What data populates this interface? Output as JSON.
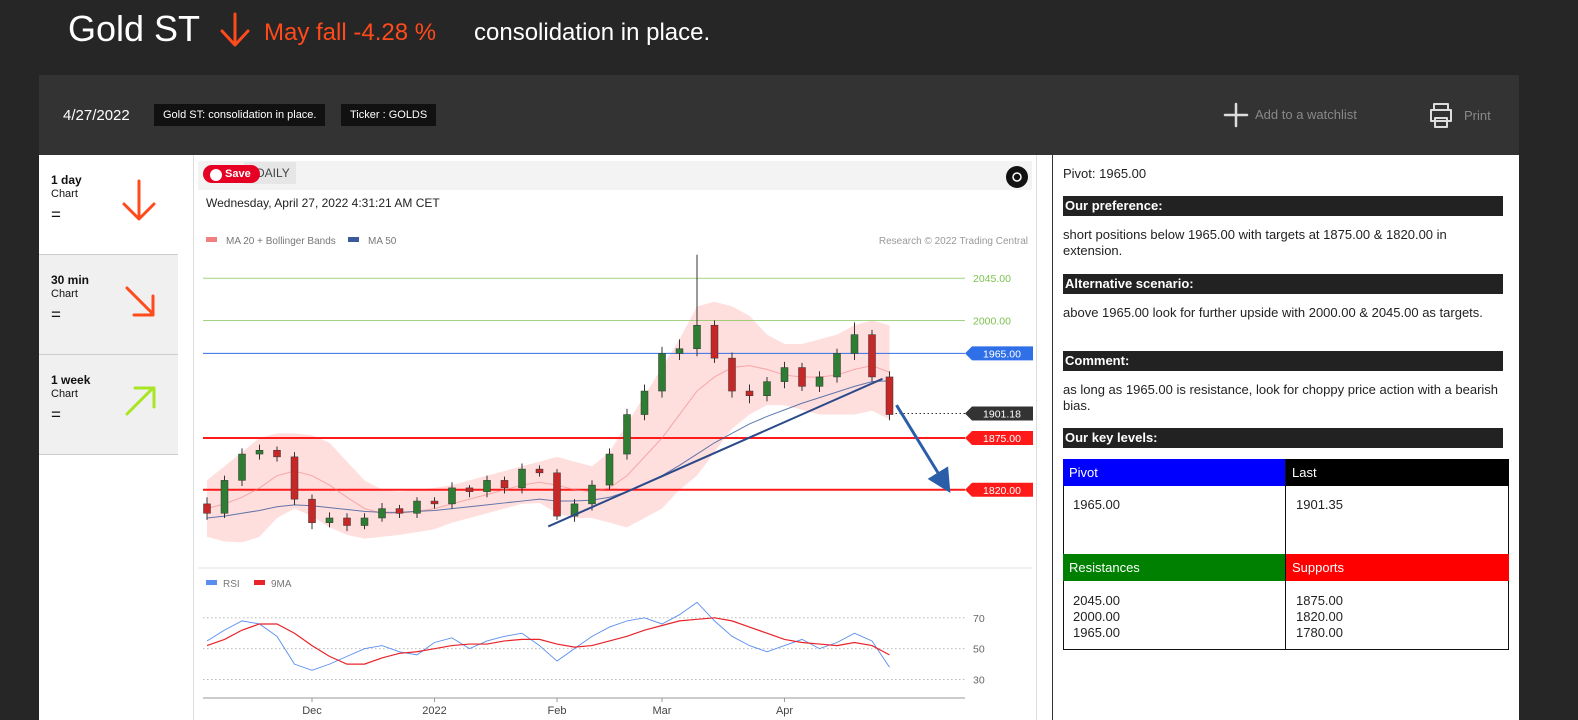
{
  "header": {
    "title": "Gold ST",
    "direction": "May fall",
    "change": "-4.28 %",
    "headline": "consolidation in place."
  },
  "toolbar": {
    "date": "4/27/2022",
    "badges": [
      "Gold ST: consolidation in place.",
      "Ticker : GOLDS"
    ],
    "watchlist": "Add to a watchlist",
    "print": "Print"
  },
  "timeframes": [
    {
      "period": "1 day",
      "label": "Chart",
      "signal": "="
    },
    {
      "period": "30 min",
      "label": "Chart",
      "signal": "="
    },
    {
      "period": "1 week",
      "label": "Chart",
      "signal": "="
    }
  ],
  "chart_header": {
    "save": "Save",
    "interval": "DAILY",
    "timestamp": "Wednesday, April 27, 2022 4:31:21 AM CET",
    "credit": "Research © 2022 Trading Central"
  },
  "chart_data": {
    "type": "candlestick",
    "categories": [
      null,
      null,
      null,
      null,
      null,
      null,
      "Dec",
      null,
      null,
      null,
      null,
      null,
      null,
      "2022",
      null,
      null,
      null,
      null,
      null,
      null,
      "Feb",
      null,
      null,
      null,
      null,
      null,
      "Mar",
      null,
      null,
      null,
      null,
      null,
      null,
      "Apr",
      null,
      null,
      null,
      null,
      null,
      null
    ],
    "open": [
      1805,
      1795,
      1830,
      1858,
      1862,
      1855,
      1810,
      1785,
      1790,
      1782,
      1790,
      1800,
      1795,
      1808,
      1805,
      1822,
      1818,
      1830,
      1822,
      1842,
      1838,
      1792,
      1805,
      1825,
      1858,
      1900,
      1925,
      1965,
      1970,
      1995,
      1960,
      1925,
      1920,
      1935,
      1950,
      1930,
      1940,
      1965,
      1985,
      1940
    ],
    "high": [
      1812,
      1835,
      1864,
      1868,
      1866,
      1860,
      1815,
      1796,
      1795,
      1795,
      1806,
      1804,
      1812,
      1812,
      1828,
      1825,
      1835,
      1834,
      1848,
      1846,
      1842,
      1810,
      1830,
      1864,
      1906,
      1932,
      1972,
      1980,
      2070,
      2000,
      1966,
      1932,
      1940,
      1956,
      1955,
      1946,
      1970,
      1998,
      1990,
      1946
    ],
    "low": [
      1788,
      1790,
      1824,
      1852,
      1850,
      1804,
      1778,
      1780,
      1776,
      1778,
      1786,
      1790,
      1790,
      1800,
      1800,
      1812,
      1812,
      1816,
      1816,
      1834,
      1788,
      1786,
      1798,
      1820,
      1852,
      1894,
      1918,
      1958,
      1962,
      1955,
      1918,
      1912,
      1914,
      1928,
      1925,
      1924,
      1934,
      1958,
      1935,
      1894
    ],
    "close": [
      1795,
      1830,
      1858,
      1862,
      1855,
      1810,
      1785,
      1790,
      1782,
      1790,
      1800,
      1795,
      1808,
      1805,
      1822,
      1818,
      1830,
      1822,
      1842,
      1838,
      1792,
      1805,
      1825,
      1858,
      1900,
      1925,
      1965,
      1970,
      1995,
      1960,
      1925,
      1920,
      1935,
      1950,
      1930,
      1940,
      1965,
      1985,
      1940,
      1900
    ],
    "up_color": "#2e7d32",
    "down_color": "#c62828",
    "ylim": [
      1740,
      2075
    ],
    "series": [
      {
        "name": "MA 20 + Bollinger Bands",
        "color": "#f08080",
        "values": [
          1800,
          1805,
          1812,
          1822,
          1835,
          1840,
          1835,
          1825,
          1812,
          1800,
          1795,
          1795,
          1797,
          1800,
          1805,
          1810,
          1815,
          1820,
          1825,
          1828,
          1825,
          1820,
          1818,
          1822,
          1835,
          1855,
          1875,
          1900,
          1925,
          1940,
          1950,
          1952,
          1948,
          1942,
          1940,
          1940,
          1942,
          1948,
          1952,
          1945
        ],
        "upper": [
          1830,
          1845,
          1860,
          1875,
          1880,
          1880,
          1878,
          1870,
          1850,
          1830,
          1820,
          1818,
          1820,
          1822,
          1825,
          1830,
          1835,
          1840,
          1845,
          1850,
          1855,
          1850,
          1845,
          1860,
          1890,
          1920,
          1950,
          1980,
          2015,
          2020,
          2015,
          2005,
          1985,
          1975,
          1975,
          1980,
          1985,
          1995,
          2000,
          1995
        ],
        "lower": [
          1770,
          1765,
          1764,
          1770,
          1790,
          1800,
          1792,
          1780,
          1772,
          1768,
          1770,
          1772,
          1775,
          1778,
          1785,
          1790,
          1795,
          1800,
          1805,
          1806,
          1795,
          1790,
          1790,
          1785,
          1780,
          1790,
          1800,
          1820,
          1835,
          1860,
          1885,
          1900,
          1910,
          1910,
          1905,
          1900,
          1900,
          1900,
          1904,
          1895
        ],
        "band_color": "#ffd6d6"
      },
      {
        "name": "MA 50",
        "color": "#3a5a9a",
        "values": [
          1790,
          1792,
          1795,
          1798,
          1802,
          1804,
          1803,
          1801,
          1799,
          1797,
          1796,
          1796,
          1797,
          1798,
          1800,
          1802,
          1804,
          1806,
          1808,
          1810,
          1808,
          1808,
          1809,
          1812,
          1818,
          1826,
          1835,
          1846,
          1858,
          1870,
          1880,
          1890,
          1898,
          1905,
          1912,
          1918,
          1924,
          1930,
          1935,
          1936
        ]
      }
    ],
    "levels": [
      {
        "value": 2045,
        "label": "2045.00",
        "color": "#7cc24f",
        "style": "plain"
      },
      {
        "value": 2000,
        "label": "2000.00",
        "color": "#7cc24f",
        "style": "plain"
      },
      {
        "value": 1965,
        "label": "1965.00",
        "color": "#2f6fe8",
        "style": "box"
      },
      {
        "value": 1901.18,
        "label": "1901.18",
        "color": "#333333",
        "style": "dotted"
      },
      {
        "value": 1875,
        "label": "1875.00",
        "color": "#ff1a1a",
        "style": "box"
      },
      {
        "value": 1820,
        "label": "1820.00",
        "color": "#ff1a1a",
        "style": "box"
      }
    ],
    "trendline": {
      "x": [
        19.5,
        38.6
      ],
      "y": [
        1781,
        1938
      ],
      "color": "#2b4a8a"
    },
    "projection": {
      "x": [
        39.4,
        42.3
      ],
      "y": [
        1910,
        1822
      ],
      "color": "#2b5ea8"
    },
    "rsi": {
      "ylim": [
        20,
        88
      ],
      "yticks": [
        30,
        50,
        70
      ],
      "series": [
        {
          "name": "RSI",
          "color": "#5b8def",
          "values": [
            55,
            62,
            68,
            66,
            58,
            40,
            36,
            40,
            45,
            50,
            52,
            48,
            46,
            54,
            57,
            50,
            55,
            58,
            60,
            52,
            42,
            50,
            58,
            64,
            68,
            70,
            66,
            72,
            80,
            68,
            58,
            52,
            48,
            52,
            56,
            50,
            54,
            60,
            55,
            38
          ]
        },
        {
          "name": "9MA",
          "color": "#e8232a",
          "values": [
            52,
            56,
            62,
            66,
            66,
            60,
            52,
            45,
            40,
            40,
            44,
            47,
            48,
            50,
            52,
            53,
            53,
            55,
            56,
            56,
            53,
            51,
            52,
            55,
            58,
            62,
            65,
            68,
            69,
            70,
            68,
            64,
            60,
            56,
            54,
            53,
            52,
            54,
            52,
            46
          ]
        }
      ]
    }
  },
  "analysis": {
    "pivot": "Pivot: 1965.00",
    "sections": [
      {
        "heading": "Our preference:",
        "text": "short positions below 1965.00 with targets at 1875.00 & 1820.00 in extension."
      },
      {
        "heading": "Alternative scenario:",
        "text": "above 1965.00 look for further upside with 2000.00 & 2045.00 as targets."
      },
      {
        "heading": "Comment:",
        "text": "as long as 1965.00 is resistance, look for choppy price action with a bearish bias."
      }
    ],
    "key_levels": "Our key levels:",
    "table": {
      "pivot_header": "Pivot",
      "last_header": "Last",
      "pivot": "1965.00",
      "last": "1901.35",
      "resistances_header": "Resistances",
      "supports_header": "Supports",
      "resistances": [
        "2045.00",
        "2000.00",
        "1965.00"
      ],
      "supports": [
        "1875.00",
        "1820.00",
        "1780.00"
      ]
    }
  }
}
